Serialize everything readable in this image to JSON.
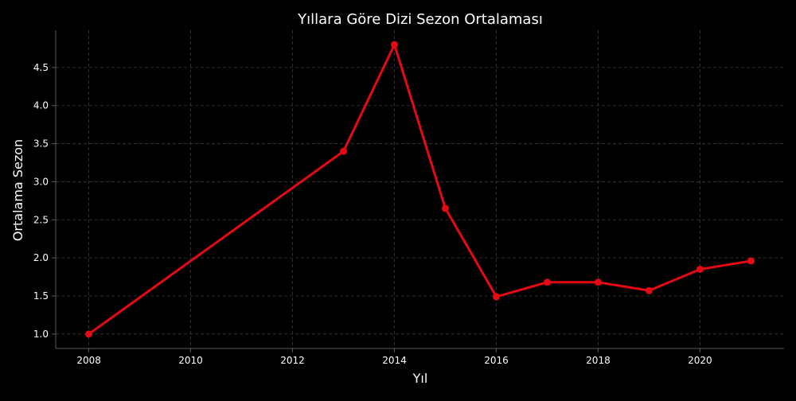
{
  "chart_data": {
    "type": "line",
    "title": "Yıllara Göre Dizi Sezon Ortalaması",
    "xlabel": "Yıl",
    "ylabel": "Ortalama Sezon",
    "x": [
      2008,
      2013,
      2014,
      2015,
      2016,
      2017,
      2018,
      2019,
      2020,
      2021
    ],
    "series": [
      {
        "values": [
          1.0,
          3.4,
          4.8,
          2.65,
          1.49,
          1.68,
          1.68,
          1.57,
          1.85,
          1.96
        ]
      }
    ],
    "xticks": [
      2008,
      2010,
      2012,
      2014,
      2016,
      2018,
      2020
    ],
    "yticks": [
      1.0,
      1.5,
      2.0,
      2.5,
      3.0,
      3.5,
      4.0,
      4.5
    ],
    "xlim": [
      2007.35,
      2021.65
    ],
    "ylim": [
      0.81,
      4.99
    ],
    "grid": true,
    "colors": {
      "background": "#000000",
      "line": "#e50914",
      "text": "#ffffff",
      "grid": "#3a3a3a",
      "axis": "#5a5a5a"
    }
  }
}
